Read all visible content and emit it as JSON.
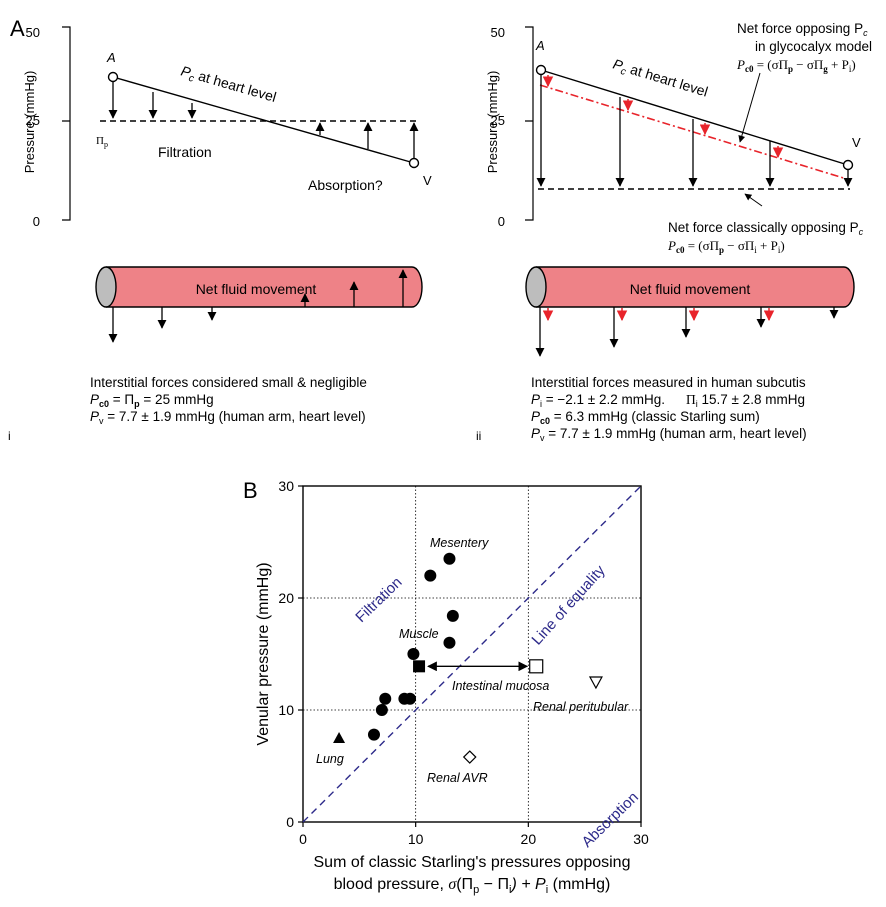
{
  "panelA": {
    "label": "A",
    "i": {
      "roman": "i",
      "ytick_top": "50",
      "ytick_mid": "25",
      "ytick_zero": "0",
      "yaxis_label": "Pressure (mmHg)",
      "arterial": "A",
      "venous": "V",
      "pc_symbol": "P",
      "pc_sub": "c",
      "pc_rest": " at heart level",
      "pi_p": "Π",
      "pi_p_sub": "p",
      "filtration": "Filtration",
      "absorption": "Absorption?",
      "vessel_label": "Net fluid movement",
      "desc_line1": "Interstitial forces considered small & negligible",
      "desc_line2": "P",
      "desc_line2_sub": "c0",
      "desc_line2_rest": " = Π",
      "desc_line2_sub2": "p",
      "desc_line2_end": " = 25 mmHg",
      "desc_line3": "P",
      "desc_line3_sub": "v",
      "desc_line3_rest": " = 7.7 ± 1.9 mmHg (human arm, heart level)"
    },
    "ii": {
      "roman": "ii",
      "ytick_top": "50",
      "ytick_mid": "25",
      "ytick_zero": "0",
      "yaxis_label": "Pressure (mmHg)",
      "arterial": "A",
      "venous": "V",
      "pc_symbol": "P",
      "pc_sub": "c",
      "pc_rest": " at heart level",
      "glyco_line1": "Net force opposing P",
      "glyco_line1_sub": "c",
      "glyco_line2": "in glycocalyx model",
      "glyco_eq": "P",
      "glyco_eq_sub": "c0",
      "glyco_eq_rest": " = (σΠ",
      "glyco_eq_p": "p",
      "glyco_eq_mid": " − σΠ",
      "glyco_eq_g": "g",
      "glyco_eq_end": " + P",
      "glyco_eq_i": "i",
      "glyco_eq_close": ")",
      "classic_line1": "Net force classically opposing P",
      "classic_line1_sub": "c",
      "classic_eq": "P",
      "classic_eq_sub": "c0",
      "classic_eq_rest": " = (σΠ",
      "classic_eq_p": "p",
      "classic_eq_mid": " − σΠ",
      "classic_eq_i": "i",
      "classic_eq_end": " + P",
      "classic_eq_i2": "i",
      "classic_eq_close": ")",
      "vessel_label": "Net fluid movement",
      "desc_line1": "Interstitial forces measured in human subcutis",
      "desc_line2a": "P",
      "desc_line2a_sub": "i",
      "desc_line2a_rest": " = −2.1 ± 2.2 mmHg.",
      "desc_line2b": "Π",
      "desc_line2b_sub": "i",
      "desc_line2b_rest": " 15.7 ± 2.8 mmHg",
      "desc_line3": "P",
      "desc_line3_sub": "c0",
      "desc_line3_rest": " = 6.3 mmHg (classic Starling sum)",
      "desc_line4": "P",
      "desc_line4_sub": "v",
      "desc_line4_rest": " = 7.7 ± 1.9 mmHg (human arm, heart level)"
    }
  },
  "panelB": {
    "label": "B",
    "ylabel": "Venular pressure (mmHg)",
    "xlabel_line1": "Sum of classic Starling's pressures opposing",
    "xlabel_line2_pre": "blood pressure, ",
    "xlabel_line2_sigma": "σ",
    "xlabel_line2_mid": "(Π",
    "xlabel_line2_p": "p",
    "xlabel_line2_minus": " − Π",
    "xlabel_line2_i": "i",
    "xlabel_line2_plus": ") + P",
    "xlabel_line2_i2": "i",
    "xlabel_line2_end": " (mmHg)",
    "region_filtration": "Filtration",
    "region_absorption": "Absorption",
    "equality_label": "Line of equality",
    "label_mesentery": "Mesentery",
    "label_muscle": "Muscle",
    "label_intestinal": "Intestinal mucosa",
    "label_renal_peri": "Renal peritubular",
    "label_lung": "Lung",
    "label_renal_avr": "Renal AVR"
  },
  "chart_data": {
    "type": "scatter",
    "xlim": [
      0,
      30
    ],
    "ylim": [
      0,
      30
    ],
    "xticks": [
      "0",
      "10",
      "20",
      "30"
    ],
    "yticks": [
      "0",
      "10",
      "20",
      "30"
    ],
    "grid": true,
    "reference_line": {
      "name": "Line of equality",
      "from": [
        0,
        0
      ],
      "to": [
        30,
        30
      ]
    },
    "series": [
      {
        "name": "Mesentery",
        "marker": "filled-circle",
        "points": [
          [
            11.3,
            22
          ],
          [
            13,
            23.5
          ]
        ]
      },
      {
        "name": "Muscle",
        "marker": "filled-circle",
        "points": [
          [
            13.3,
            18.4
          ],
          [
            13,
            16
          ],
          [
            9.8,
            15
          ],
          [
            7.3,
            11
          ],
          [
            9,
            11
          ],
          [
            9.5,
            11
          ],
          [
            7,
            10
          ],
          [
            6.3,
            7.8
          ]
        ]
      },
      {
        "name": "Intestinal mucosa",
        "marker": "filled-square",
        "points": [
          [
            10.3,
            13.9
          ]
        ]
      },
      {
        "name": "Intestinal mucosa",
        "marker": "open-square",
        "points": [
          [
            20.7,
            13.9
          ]
        ]
      },
      {
        "name": "Renal peritubular",
        "marker": "open-triangle-down",
        "points": [
          [
            26,
            12.5
          ]
        ]
      },
      {
        "name": "Lung",
        "marker": "filled-triangle",
        "points": [
          [
            3.2,
            7.5
          ]
        ]
      },
      {
        "name": "Renal AVR",
        "marker": "open-diamond",
        "points": [
          [
            14.8,
            5.8
          ]
        ]
      }
    ],
    "arrow_between": {
      "from": [
        10.3,
        13.9
      ],
      "to": [
        20.7,
        13.9
      ]
    }
  },
  "colors": {
    "vessel_fill": "#ee8287",
    "vessel_end": "#bdbdbd",
    "red_arrow": "#e8242b",
    "equality_line": "#2d2a8a",
    "region_text": "#2d2a8a"
  }
}
